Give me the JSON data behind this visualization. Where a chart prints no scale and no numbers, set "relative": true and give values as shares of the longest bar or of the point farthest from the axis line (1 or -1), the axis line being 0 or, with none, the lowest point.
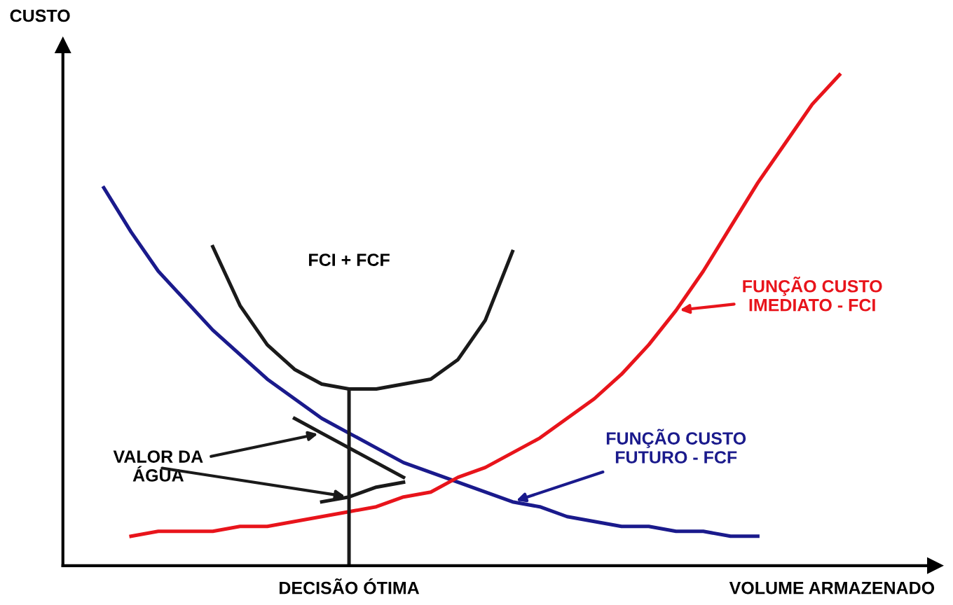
{
  "chart_data": {
    "type": "line",
    "relative": true,
    "xlabel": "VOLUME ARMAZENADO",
    "ylabel": "CUSTO",
    "categories": [
      null,
      null,
      null,
      null,
      null,
      null,
      null,
      null,
      null,
      null,
      null,
      null,
      null,
      null,
      null,
      null,
      null,
      null,
      null,
      null,
      null,
      null,
      null,
      null,
      null,
      null,
      null,
      null,
      null,
      null,
      null,
      null
    ],
    "series": [
      {
        "color": "#1a1a8c",
        "values": [
          null,
          0.77,
          0.68,
          0.6,
          0.54,
          0.48,
          0.43,
          0.38,
          0.34,
          0.3,
          0.27,
          0.24,
          0.21,
          0.19,
          0.17,
          0.15,
          0.13,
          0.12,
          0.1,
          0.09,
          0.08,
          0.08,
          0.07,
          0.07,
          0.06,
          0.06,
          null,
          null,
          null,
          null,
          null,
          null
        ]
      },
      {
        "color": "#e8141b",
        "values": [
          null,
          null,
          0.06,
          0.07,
          0.07,
          0.07,
          0.08,
          0.08,
          0.09,
          0.1,
          0.11,
          0.12,
          0.14,
          0.15,
          0.18,
          0.2,
          0.23,
          0.26,
          0.3,
          0.34,
          0.39,
          0.45,
          0.52,
          0.6,
          0.69,
          0.78,
          0.86,
          0.94,
          1.0,
          null,
          null,
          null
        ]
      },
      {
        "color": "#1a1a1a",
        "values": [
          null,
          null,
          null,
          null,
          null,
          0.65,
          0.53,
          0.45,
          0.4,
          0.37,
          0.36,
          0.36,
          0.37,
          0.38,
          0.42,
          0.5,
          0.64,
          null,
          null,
          null,
          null,
          null,
          null,
          null,
          null,
          null,
          null,
          null,
          null,
          null,
          null,
          null
        ]
      },
      {
        "color": "#1a1a1a",
        "values": [
          null,
          null,
          null,
          null,
          null,
          null,
          null,
          null,
          0.3,
          0.27,
          0.24,
          0.21,
          0.18,
          null,
          null,
          null,
          null,
          null,
          null,
          null,
          null,
          null,
          null,
          null,
          null,
          null,
          null,
          null,
          null,
          null,
          null,
          null
        ]
      },
      {
        "color": "#1a1a1a",
        "values": [
          null,
          null,
          null,
          null,
          null,
          null,
          null,
          null,
          null,
          0.13,
          0.14,
          0.16,
          0.17,
          null,
          null,
          null,
          null,
          null,
          null,
          null,
          null,
          null,
          null,
          null,
          null,
          null,
          null,
          null,
          null,
          null,
          null,
          null
        ]
      }
    ],
    "annotations": [
      "FCI + FCF",
      "FUNÇÃO CUSTO\nIMEDIATO - FCI",
      "FUNÇÃO CUSTO\nFUTURO - FCF",
      "VALOR DA\nÁGUA",
      "DECISÃO ÓTIMA"
    ],
    "legend": false
  }
}
